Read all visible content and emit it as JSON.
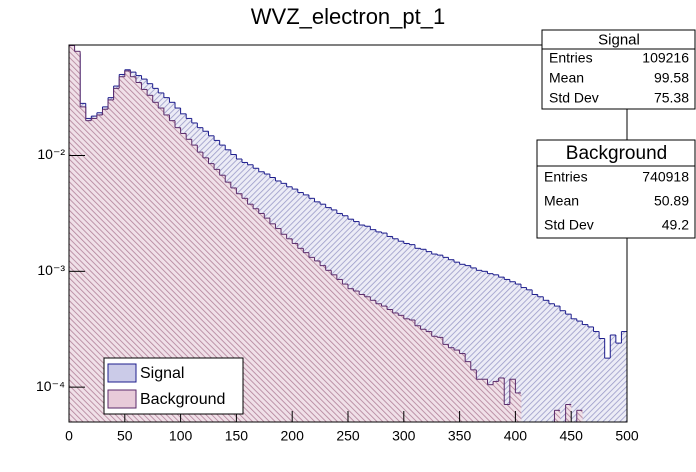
{
  "chart_data": {
    "type": "histogram",
    "title": "WVZ_electron_pt_1",
    "log_y": true,
    "legend": "lower left",
    "bins": [
      0,
      5,
      10,
      15,
      20,
      25,
      30,
      35,
      40,
      45,
      50,
      55,
      60,
      65,
      70,
      75,
      80,
      85,
      90,
      95,
      100,
      105,
      110,
      115,
      120,
      125,
      130,
      135,
      140,
      145,
      150,
      155,
      160,
      165,
      170,
      175,
      180,
      185,
      190,
      195,
      200,
      205,
      210,
      215,
      220,
      225,
      230,
      235,
      240,
      245,
      250,
      255,
      260,
      265,
      270,
      275,
      280,
      285,
      290,
      295,
      300,
      305,
      310,
      315,
      320,
      325,
      330,
      335,
      340,
      345,
      350,
      355,
      360,
      365,
      370,
      375,
      380,
      385,
      390,
      395,
      400,
      405,
      410,
      415,
      420,
      425,
      430,
      435,
      440,
      445,
      450,
      455,
      460,
      465,
      470,
      475,
      480,
      485,
      490,
      495,
      500
    ],
    "xlim": [
      0,
      500
    ],
    "xticks": [
      0,
      50,
      100,
      150,
      200,
      250,
      300,
      350,
      400,
      450,
      500
    ],
    "ylim": [
      5e-05,
      0.09
    ],
    "yticks": [
      {
        "value": 0.0001,
        "label": "10⁻⁴"
      },
      {
        "value": 0.001,
        "label": "10⁻³"
      },
      {
        "value": 0.01,
        "label": "10⁻²"
      }
    ],
    "series": [
      {
        "name": "Signal",
        "color": "#1c1c8c",
        "fill_color": "#a8a8d8",
        "values": [
          0.0832,
          0.0759,
          0.0282,
          0.0209,
          0.0219,
          0.0234,
          0.0263,
          0.0316,
          0.0398,
          0.0501,
          0.055,
          0.0525,
          0.049,
          0.0457,
          0.0417,
          0.038,
          0.0347,
          0.0316,
          0.0288,
          0.0257,
          0.0229,
          0.0209,
          0.0191,
          0.0174,
          0.0162,
          0.0148,
          0.0135,
          0.0123,
          0.0112,
          0.0102,
          0.00933,
          0.00871,
          0.00832,
          0.00776,
          0.00724,
          0.00692,
          0.00646,
          0.00603,
          0.00575,
          0.00537,
          0.00513,
          0.00479,
          0.00457,
          0.00427,
          0.00398,
          0.0038,
          0.00355,
          0.00339,
          0.00316,
          0.00302,
          0.00282,
          0.00269,
          0.00251,
          0.00245,
          0.00229,
          0.00219,
          0.00214,
          0.002,
          0.00191,
          0.00182,
          0.00174,
          0.0017,
          0.00158,
          0.00155,
          0.00148,
          0.00141,
          0.00138,
          0.00132,
          0.00126,
          0.0012,
          0.00115,
          0.00112,
          0.00107,
          0.00102,
          0.001,
          0.000955,
          0.000933,
          0.000891,
          0.000851,
          0.000813,
          0.000776,
          0.000724,
          0.000692,
          0.000631,
          0.000603,
          0.000562,
          0.000525,
          0.000501,
          0.000457,
          0.000427,
          0.000389,
          0.000372,
          0.000347,
          0.000331,
          0.000302,
          0.000263,
          0.000178,
          0.000282,
          0.00024,
          0.000302
        ]
      },
      {
        "name": "Background",
        "color": "#5a2a6a",
        "fill_color": "#d8a8c0",
        "values": [
          0.0891,
          0.0794,
          0.0263,
          0.02,
          0.0209,
          0.0224,
          0.0251,
          0.0302,
          0.038,
          0.0479,
          0.0537,
          0.0479,
          0.0427,
          0.0372,
          0.0331,
          0.0288,
          0.0257,
          0.0224,
          0.02,
          0.0174,
          0.0155,
          0.0138,
          0.0123,
          0.0107,
          0.00955,
          0.00851,
          0.00759,
          0.00676,
          0.00589,
          0.00525,
          0.00468,
          0.00427,
          0.0038,
          0.00347,
          0.00316,
          0.00288,
          0.00257,
          0.00234,
          0.00209,
          0.00191,
          0.00174,
          0.00158,
          0.00145,
          0.00132,
          0.00123,
          0.00112,
          0.00102,
          0.000933,
          0.000851,
          0.000776,
          0.000708,
          0.000676,
          0.000631,
          0.000603,
          0.000562,
          0.000525,
          0.000501,
          0.000468,
          0.000437,
          0.000417,
          0.000389,
          0.00038,
          0.000339,
          0.000316,
          0.000302,
          0.000275,
          0.000269,
          0.000234,
          0.000219,
          0.000209,
          0.000195,
          0.000166,
          0.000141,
          0.000117,
          0.000117,
          0.000105,
          0.000112,
          0.00012,
          7.08e-05,
          0.000117,
          8.91e-05,
          0,
          0,
          0,
          0,
          0,
          0,
          6.31e-05,
          0,
          7.08e-05,
          0,
          6.31e-05,
          0,
          0,
          0,
          0,
          0,
          0,
          0,
          0
        ]
      }
    ],
    "stats": [
      {
        "title": "Signal",
        "rows": [
          {
            "label": "Entries",
            "value": 109216
          },
          {
            "label": "Mean",
            "value": 99.58
          },
          {
            "label": "Std Dev",
            "value": 75.38
          }
        ]
      },
      {
        "title": "Background",
        "rows": [
          {
            "label": "Entries",
            "value": 740918
          },
          {
            "label": "Mean",
            "value": 50.89
          },
          {
            "label": "Std Dev",
            "value": 49.2
          }
        ]
      }
    ]
  }
}
